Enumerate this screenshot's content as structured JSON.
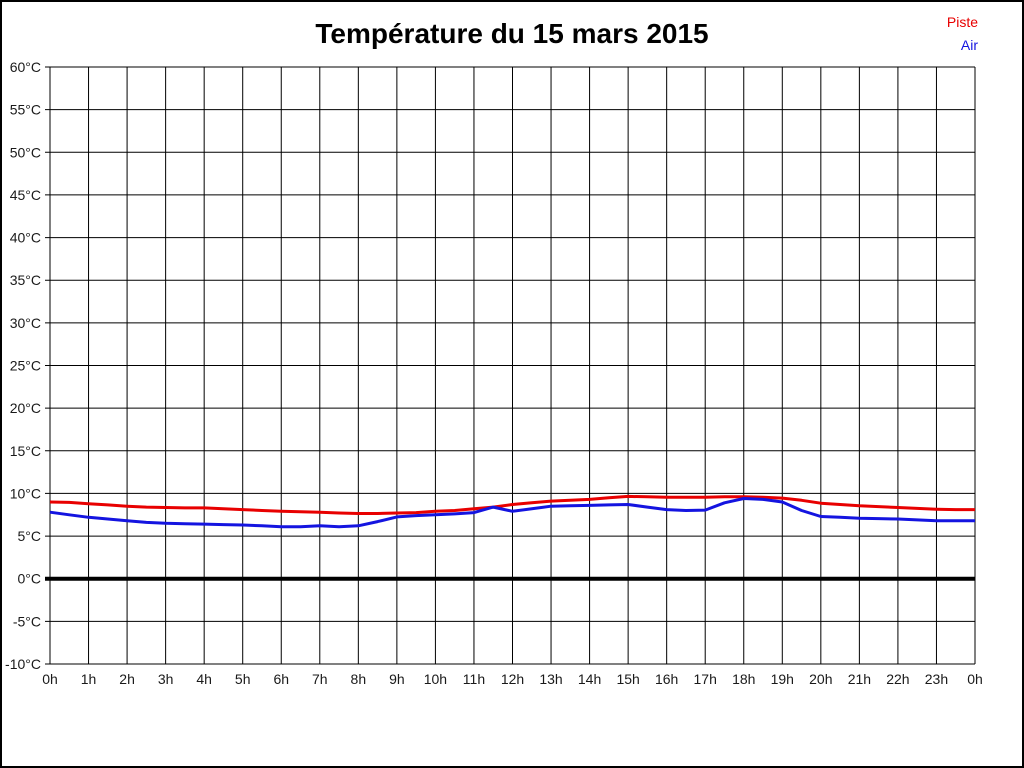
{
  "chart_data": {
    "type": "line",
    "title": "Température du 15 mars 2015",
    "xlabel": "",
    "ylabel": "",
    "xlim": [
      0,
      24
    ],
    "ylim": [
      -10,
      60
    ],
    "ytick_step": 5,
    "grid": true,
    "zero_line": {
      "value": 0,
      "color": "#000000",
      "width": 4
    },
    "legend_position": "top-right",
    "y_tick_labels": [
      "60°C",
      "55°C",
      "50°C",
      "45°C",
      "40°C",
      "35°C",
      "30°C",
      "25°C",
      "20°C",
      "15°C",
      "10°C",
      "5°C",
      "0°C",
      "-5°C",
      "-10°C"
    ],
    "x_tick_labels": [
      "0h",
      "1h",
      "2h",
      "3h",
      "4h",
      "5h",
      "6h",
      "7h",
      "8h",
      "9h",
      "10h",
      "11h",
      "12h",
      "13h",
      "14h",
      "15h",
      "16h",
      "17h",
      "18h",
      "19h",
      "20h",
      "21h",
      "22h",
      "23h",
      "0h"
    ],
    "legend": [
      {
        "key": "piste",
        "label": "Piste"
      },
      {
        "key": "air",
        "label": "Air"
      }
    ],
    "series": [
      {
        "key": "piste",
        "name": "Piste",
        "color": "#e80000",
        "points": [
          [
            0,
            9.0
          ],
          [
            0.5,
            8.95
          ],
          [
            1,
            8.8
          ],
          [
            1.5,
            8.65
          ],
          [
            2,
            8.5
          ],
          [
            2.5,
            8.4
          ],
          [
            3,
            8.35
          ],
          [
            3.5,
            8.3
          ],
          [
            4,
            8.3
          ],
          [
            4.5,
            8.2
          ],
          [
            5,
            8.1
          ],
          [
            5.5,
            8.0
          ],
          [
            6,
            7.9
          ],
          [
            6.5,
            7.85
          ],
          [
            7,
            7.8
          ],
          [
            7.5,
            7.7
          ],
          [
            8,
            7.65
          ],
          [
            8.5,
            7.65
          ],
          [
            9,
            7.7
          ],
          [
            9.5,
            7.75
          ],
          [
            10,
            7.9
          ],
          [
            10.5,
            8.0
          ],
          [
            11,
            8.2
          ],
          [
            11.5,
            8.4
          ],
          [
            12,
            8.7
          ],
          [
            12.5,
            8.9
          ],
          [
            13,
            9.1
          ],
          [
            13.5,
            9.2
          ],
          [
            14,
            9.3
          ],
          [
            14.5,
            9.5
          ],
          [
            15,
            9.65
          ],
          [
            15.5,
            9.6
          ],
          [
            16,
            9.55
          ],
          [
            16.5,
            9.55
          ],
          [
            17,
            9.55
          ],
          [
            17.5,
            9.6
          ],
          [
            18,
            9.6
          ],
          [
            18.5,
            9.55
          ],
          [
            19,
            9.45
          ],
          [
            19.5,
            9.2
          ],
          [
            20,
            8.85
          ],
          [
            20.5,
            8.7
          ],
          [
            21,
            8.55
          ],
          [
            21.5,
            8.45
          ],
          [
            22,
            8.35
          ],
          [
            22.5,
            8.25
          ],
          [
            23,
            8.15
          ],
          [
            23.5,
            8.1
          ],
          [
            24,
            8.1
          ]
        ]
      },
      {
        "key": "air",
        "name": "Air",
        "color": "#1414e0",
        "points": [
          [
            0,
            7.8
          ],
          [
            0.5,
            7.5
          ],
          [
            1,
            7.2
          ],
          [
            1.5,
            7.0
          ],
          [
            2,
            6.8
          ],
          [
            2.5,
            6.6
          ],
          [
            3,
            6.5
          ],
          [
            3.5,
            6.45
          ],
          [
            4,
            6.4
          ],
          [
            4.5,
            6.35
          ],
          [
            5,
            6.3
          ],
          [
            5.5,
            6.2
          ],
          [
            6,
            6.1
          ],
          [
            6.5,
            6.1
          ],
          [
            7,
            6.2
          ],
          [
            7.5,
            6.1
          ],
          [
            8,
            6.2
          ],
          [
            8.5,
            6.7
          ],
          [
            9,
            7.25
          ],
          [
            9.5,
            7.4
          ],
          [
            10,
            7.5
          ],
          [
            10.5,
            7.6
          ],
          [
            11,
            7.75
          ],
          [
            11.5,
            8.4
          ],
          [
            12,
            7.9
          ],
          [
            12.5,
            8.2
          ],
          [
            13,
            8.5
          ],
          [
            13.5,
            8.55
          ],
          [
            14,
            8.6
          ],
          [
            14.5,
            8.65
          ],
          [
            15,
            8.7
          ],
          [
            15.5,
            8.4
          ],
          [
            16,
            8.1
          ],
          [
            16.5,
            8.0
          ],
          [
            17,
            8.05
          ],
          [
            17.5,
            8.9
          ],
          [
            18,
            9.4
          ],
          [
            18.5,
            9.3
          ],
          [
            19,
            9.0
          ],
          [
            19.5,
            8.0
          ],
          [
            20,
            7.3
          ],
          [
            20.5,
            7.2
          ],
          [
            21,
            7.1
          ],
          [
            21.5,
            7.05
          ],
          [
            22,
            7.0
          ],
          [
            22.5,
            6.9
          ],
          [
            23,
            6.8
          ],
          [
            23.5,
            6.8
          ],
          [
            24,
            6.8
          ]
        ]
      }
    ]
  }
}
